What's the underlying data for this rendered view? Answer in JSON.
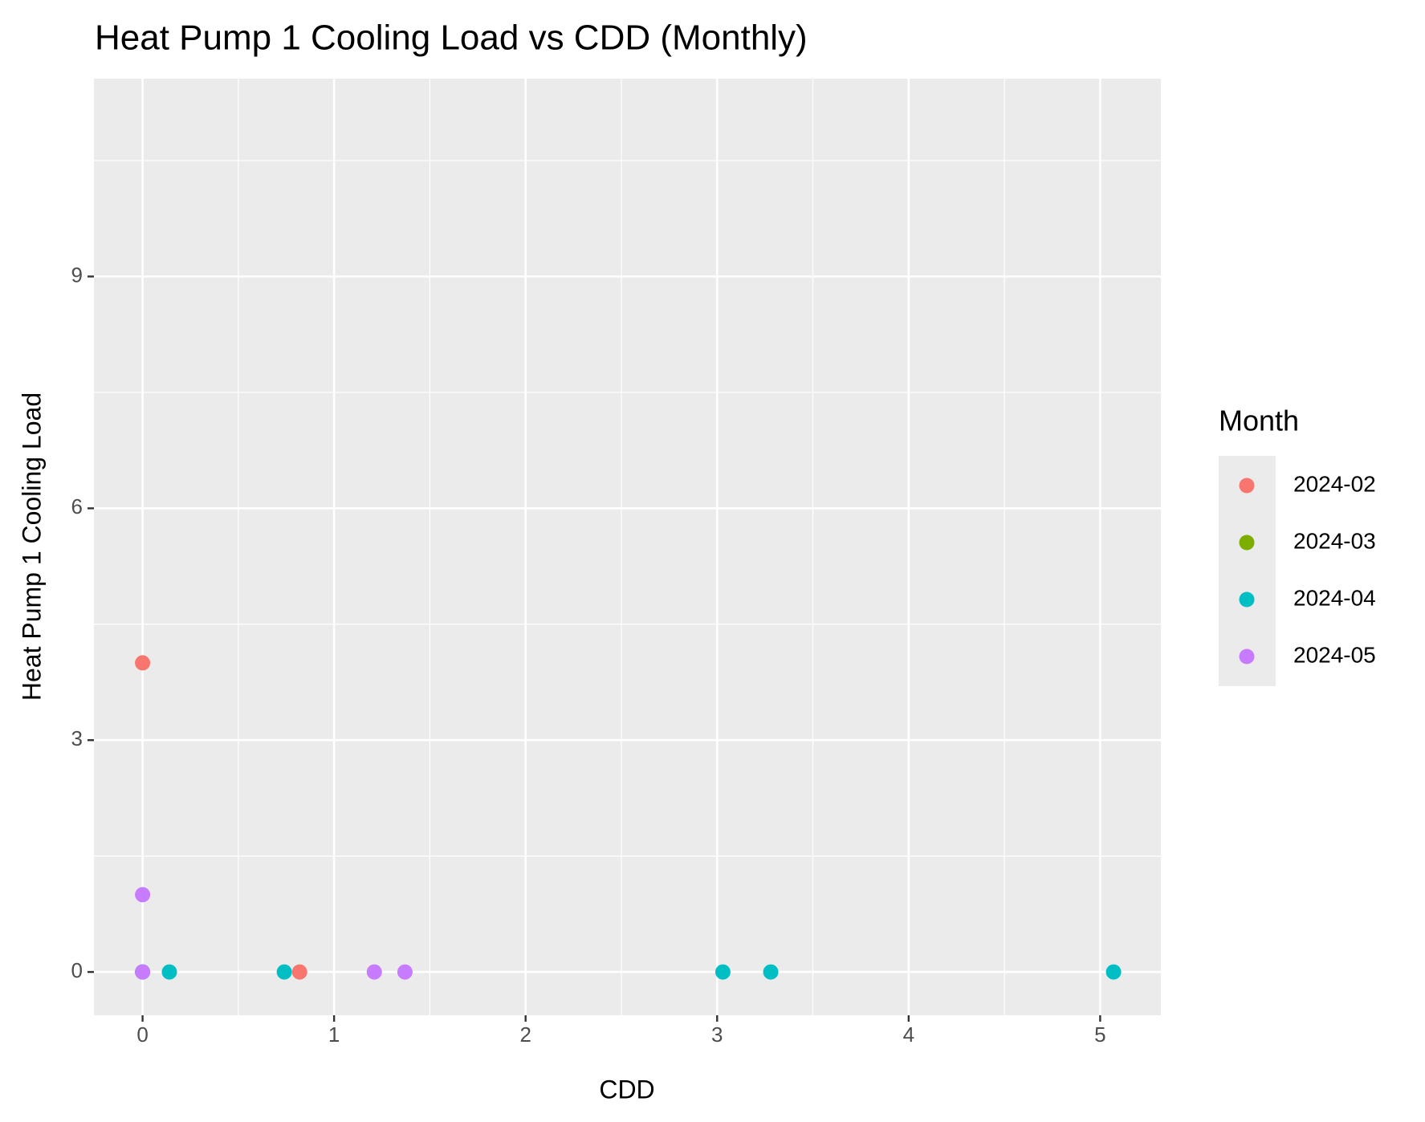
{
  "chart_data": {
    "type": "scatter",
    "title": "Heat Pump 1 Cooling Load vs CDD (Monthly)",
    "x_label": "CDD",
    "y_label": "Heat Pump 1 Cooling Load",
    "legend_title": "Month",
    "legend_position": "right",
    "grid": true,
    "xlim": [
      -0.254,
      5.317
    ],
    "ylim": [
      -0.56,
      11.56
    ],
    "xticks": [
      0,
      1,
      2,
      3,
      4,
      5
    ],
    "yticks": [
      0,
      3,
      6,
      9
    ],
    "series": [
      {
        "name": "2024-02",
        "color": "#f8766d",
        "x": [
          0,
          0.82
        ],
        "values": [
          4,
          0
        ]
      },
      {
        "name": "2024-03",
        "color": "#7cae00",
        "x": [
          0
        ],
        "values": [
          0
        ]
      },
      {
        "name": "2024-04",
        "color": "#00bfc4",
        "x": [
          0,
          0.14,
          0.74,
          3.03,
          3.28,
          5.07
        ],
        "values": [
          0,
          0,
          0,
          0,
          0,
          0
        ]
      },
      {
        "name": "2024-05",
        "color": "#c77cff",
        "x": [
          0,
          0,
          1.21,
          1.37
        ],
        "values": [
          1,
          0,
          0,
          0
        ]
      }
    ]
  }
}
